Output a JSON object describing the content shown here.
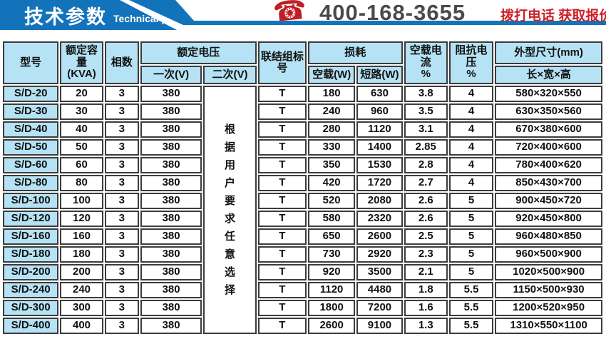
{
  "banner": {
    "title_cn": "技术参数",
    "title_en": "Technical parameter",
    "phone_icon": "phone-icon",
    "phone_number": "400-168-3655",
    "phone_cta": "拨打电话 获取报价!",
    "colors": {
      "ribbon_blue": "#1373ba",
      "phone_red": "#bf1e24",
      "cta_red": "#cc2027",
      "number_gray": "#4a4a4a"
    }
  },
  "table": {
    "colors": {
      "header_bg": "#b5e2f4",
      "border": "#3c3c3c",
      "cell_bg": "#ffffff"
    },
    "header": {
      "model": "型号",
      "capacity_l1": "额定容量",
      "capacity_l2": "(KVA)",
      "phases": "相数",
      "rated_voltage": "额定电压",
      "primary": "一次(V)",
      "secondary": "二次(V)",
      "connection": "联结组标号",
      "loss": "损耗",
      "noload_w": "空载(W)",
      "short_w": "短路(W)",
      "noload_current_l1": "空载电流",
      "noload_current_l2": "%",
      "impedance_l1": "阻抗电压",
      "impedance_l2": "%",
      "dimensions": "外型尺寸(mm)",
      "lwh": "长×宽×高"
    },
    "secondary_note": "根据用户要求任意选择",
    "rows": [
      {
        "model": "S/D-20",
        "capacity": "20",
        "phases": "3",
        "primary": "380",
        "connection": "T",
        "noload_w": "180",
        "short_w": "630",
        "noload_current": "3.8",
        "impedance": "4",
        "dimensions": "580×320×550"
      },
      {
        "model": "S/D-30",
        "capacity": "30",
        "phases": "3",
        "primary": "380",
        "connection": "T",
        "noload_w": "240",
        "short_w": "960",
        "noload_current": "3.5",
        "impedance": "4",
        "dimensions": "630×350×560"
      },
      {
        "model": "S/D-40",
        "capacity": "40",
        "phases": "3",
        "primary": "380",
        "connection": "T",
        "noload_w": "280",
        "short_w": "1120",
        "noload_current": "3.1",
        "impedance": "4",
        "dimensions": "670×380×600"
      },
      {
        "model": "S/D-50",
        "capacity": "50",
        "phases": "3",
        "primary": "380",
        "connection": "T",
        "noload_w": "330",
        "short_w": "1400",
        "noload_current": "2.85",
        "impedance": "4",
        "dimensions": "720×400×600"
      },
      {
        "model": "S/D-60",
        "capacity": "60",
        "phases": "3",
        "primary": "380",
        "connection": "T",
        "noload_w": "350",
        "short_w": "1530",
        "noload_current": "2.8",
        "impedance": "4",
        "dimensions": "780×400×620"
      },
      {
        "model": "S/D-80",
        "capacity": "80",
        "phases": "3",
        "primary": "380",
        "connection": "T",
        "noload_w": "420",
        "short_w": "1720",
        "noload_current": "2.7",
        "impedance": "4",
        "dimensions": "850×430×700"
      },
      {
        "model": "S/D-100",
        "capacity": "100",
        "phases": "3",
        "primary": "380",
        "connection": "T",
        "noload_w": "520",
        "short_w": "2080",
        "noload_current": "2.6",
        "impedance": "5",
        "dimensions": "900×450×720"
      },
      {
        "model": "S/D-120",
        "capacity": "120",
        "phases": "3",
        "primary": "380",
        "connection": "T",
        "noload_w": "580",
        "short_w": "2320",
        "noload_current": "2.6",
        "impedance": "5",
        "dimensions": "920×450×800"
      },
      {
        "model": "S/D-160",
        "capacity": "160",
        "phases": "3",
        "primary": "380",
        "connection": "T",
        "noload_w": "650",
        "short_w": "2600",
        "noload_current": "2.5",
        "impedance": "5",
        "dimensions": "960×480×850"
      },
      {
        "model": "S/D-180",
        "capacity": "180",
        "phases": "3",
        "primary": "380",
        "connection": "T",
        "noload_w": "730",
        "short_w": "2920",
        "noload_current": "2.3",
        "impedance": "5",
        "dimensions": "960×500×900"
      },
      {
        "model": "S/D-200",
        "capacity": "200",
        "phases": "3",
        "primary": "380",
        "connection": "T",
        "noload_w": "920",
        "short_w": "3500",
        "noload_current": "2.1",
        "impedance": "5",
        "dimensions": "1020×500×900"
      },
      {
        "model": "S/D-240",
        "capacity": "240",
        "phases": "3",
        "primary": "380",
        "connection": "T",
        "noload_w": "1120",
        "short_w": "4480",
        "noload_current": "1.8",
        "impedance": "5.5",
        "dimensions": "1150×500×930"
      },
      {
        "model": "S/D-300",
        "capacity": "300",
        "phases": "3",
        "primary": "380",
        "connection": "T",
        "noload_w": "1800",
        "short_w": "7200",
        "noload_current": "1.6",
        "impedance": "5.5",
        "dimensions": "1200×520×950"
      },
      {
        "model": "S/D-400",
        "capacity": "400",
        "phases": "3",
        "primary": "380",
        "connection": "T",
        "noload_w": "2600",
        "short_w": "9100",
        "noload_current": "1.3",
        "impedance": "5.5",
        "dimensions": "1310×550×1100"
      }
    ]
  }
}
